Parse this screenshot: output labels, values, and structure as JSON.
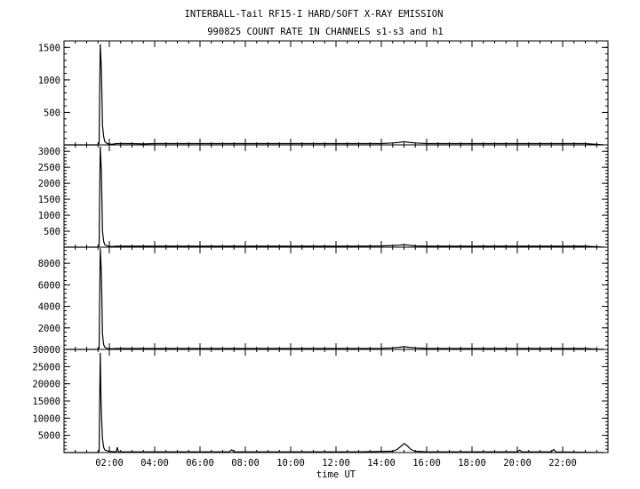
{
  "title": "INTERBALL-Tail RF15-I HARD/SOFT X-RAY EMISSION",
  "subtitle": "990825  COUNT RATE IN CHANNELS s1-s3 and h1",
  "chart_data": {
    "type": "line",
    "title": "INTERBALL-Tail RF15-I HARD/SOFT X-RAY EMISSION",
    "subtitle": "990825  COUNT RATE IN CHANNELS s1-s3 and h1",
    "xlabel": "time UT",
    "x_unit": "hours UT",
    "xlim": [
      0,
      24
    ],
    "x_ticks": [
      2,
      4,
      6,
      8,
      10,
      12,
      14,
      16,
      18,
      20,
      22
    ],
    "x_tick_labels": [
      "02:00",
      "04:00",
      "06:00",
      "08:00",
      "10:00",
      "12:00",
      "14:00",
      "16:00",
      "18:00",
      "20:00",
      "22:00"
    ],
    "grid": false,
    "panels": [
      {
        "channel": "s1",
        "ylim": [
          0,
          1600
        ],
        "y_ticks": [
          500,
          1000,
          1500
        ],
        "y_tick_labels": [
          "500",
          "1000",
          "1500"
        ],
        "peak_value": 1550,
        "series": [
          {
            "x": [
              0.0,
              1.5,
              1.55,
              1.6,
              1.65,
              1.7,
              1.75,
              1.8,
              1.9,
              2.0,
              2.1,
              2.3,
              3.0,
              3.5,
              4.0,
              7.5,
              11.5,
              12.0,
              13.0,
              14.0,
              14.5,
              14.8,
              15.0,
              15.2,
              15.5,
              16.0,
              17.0,
              18.5,
              19.0,
              20.0,
              21.0,
              22.0,
              23.0,
              23.8
            ],
            "y": [
              0,
              0,
              30,
              1550,
              1150,
              300,
              130,
              50,
              20,
              15,
              10,
              20,
              20,
              15,
              20,
              20,
              20,
              20,
              20,
              20,
              30,
              40,
              50,
              40,
              30,
              20,
              20,
              20,
              20,
              20,
              20,
              20,
              20,
              0
            ]
          }
        ]
      },
      {
        "channel": "s2",
        "ylim": [
          0,
          3200
        ],
        "y_ticks": [
          500,
          1000,
          1500,
          2000,
          2500,
          3000
        ],
        "y_tick_labels": [
          "500",
          "1000",
          "1500",
          "2000",
          "2500",
          "3000"
        ],
        "peak_value": 3150,
        "series": [
          {
            "x": [
              0.0,
              1.5,
              1.55,
              1.6,
              1.65,
              1.7,
              1.75,
              1.8,
              1.9,
              2.0,
              2.1,
              2.3,
              3.0,
              4.0,
              7.5,
              12.5,
              13.0,
              14.0,
              14.8,
              15.0,
              15.2,
              15.5,
              16.0,
              17.0,
              18.5,
              20.0,
              22.0,
              23.0,
              23.8
            ],
            "y": [
              0,
              0,
              60,
              3150,
              2350,
              500,
              180,
              80,
              40,
              30,
              20,
              30,
              30,
              30,
              30,
              30,
              30,
              40,
              60,
              80,
              60,
              40,
              30,
              30,
              30,
              30,
              30,
              30,
              0
            ]
          }
        ]
      },
      {
        "channel": "s3",
        "ylim": [
          0,
          9500
        ],
        "y_ticks": [
          2000,
          4000,
          6000,
          8000
        ],
        "y_tick_labels": [
          "2000",
          "4000",
          "6000",
          "8000"
        ],
        "peak_value": 9400,
        "series": [
          {
            "x": [
              0.0,
              1.5,
              1.55,
              1.6,
              1.65,
              1.7,
              1.75,
              1.8,
              1.9,
              2.0,
              2.1,
              2.3,
              3.0,
              7.5,
              13.0,
              14.0,
              14.5,
              14.8,
              15.0,
              15.2,
              15.5,
              16.0,
              17.0,
              19.0,
              21.0,
              23.0,
              23.8
            ],
            "y": [
              0,
              0,
              150,
              9400,
              7000,
              1400,
              450,
              200,
              100,
              80,
              60,
              80,
              80,
              80,
              80,
              100,
              140,
              200,
              260,
              200,
              140,
              90,
              80,
              80,
              80,
              80,
              0
            ]
          }
        ]
      },
      {
        "channel": "h1",
        "ylim": [
          0,
          30000
        ],
        "y_ticks": [
          5000,
          10000,
          15000,
          20000,
          25000,
          30000
        ],
        "y_tick_labels": [
          "5000",
          "10000",
          "15000",
          "20000",
          "25000",
          "30000"
        ],
        "peak_value": 29000,
        "series": [
          {
            "x": [
              0.0,
              1.5,
              1.55,
              1.6,
              1.63,
              1.66,
              1.7,
              1.75,
              1.8,
              1.9,
              2.0,
              2.1,
              2.3,
              2.35,
              2.4,
              3.0,
              7.3,
              7.4,
              7.5,
              13.0,
              14.5,
              14.7,
              14.9,
              15.0,
              15.1,
              15.2,
              15.3,
              15.5,
              16.0,
              19.0,
              20.0,
              20.1,
              20.2,
              21.0,
              21.5,
              21.6,
              21.7,
              23.8
            ],
            "y": [
              0,
              0,
              500,
              29000,
              16000,
              10000,
              4000,
              1500,
              800,
              500,
              400,
              300,
              200,
              1500,
              200,
              200,
              200,
              800,
              200,
              200,
              400,
              900,
              2000,
              2600,
              2200,
              1600,
              900,
              400,
              200,
              200,
              200,
              700,
              200,
              200,
              200,
              900,
              200,
              0
            ]
          }
        ]
      }
    ]
  }
}
